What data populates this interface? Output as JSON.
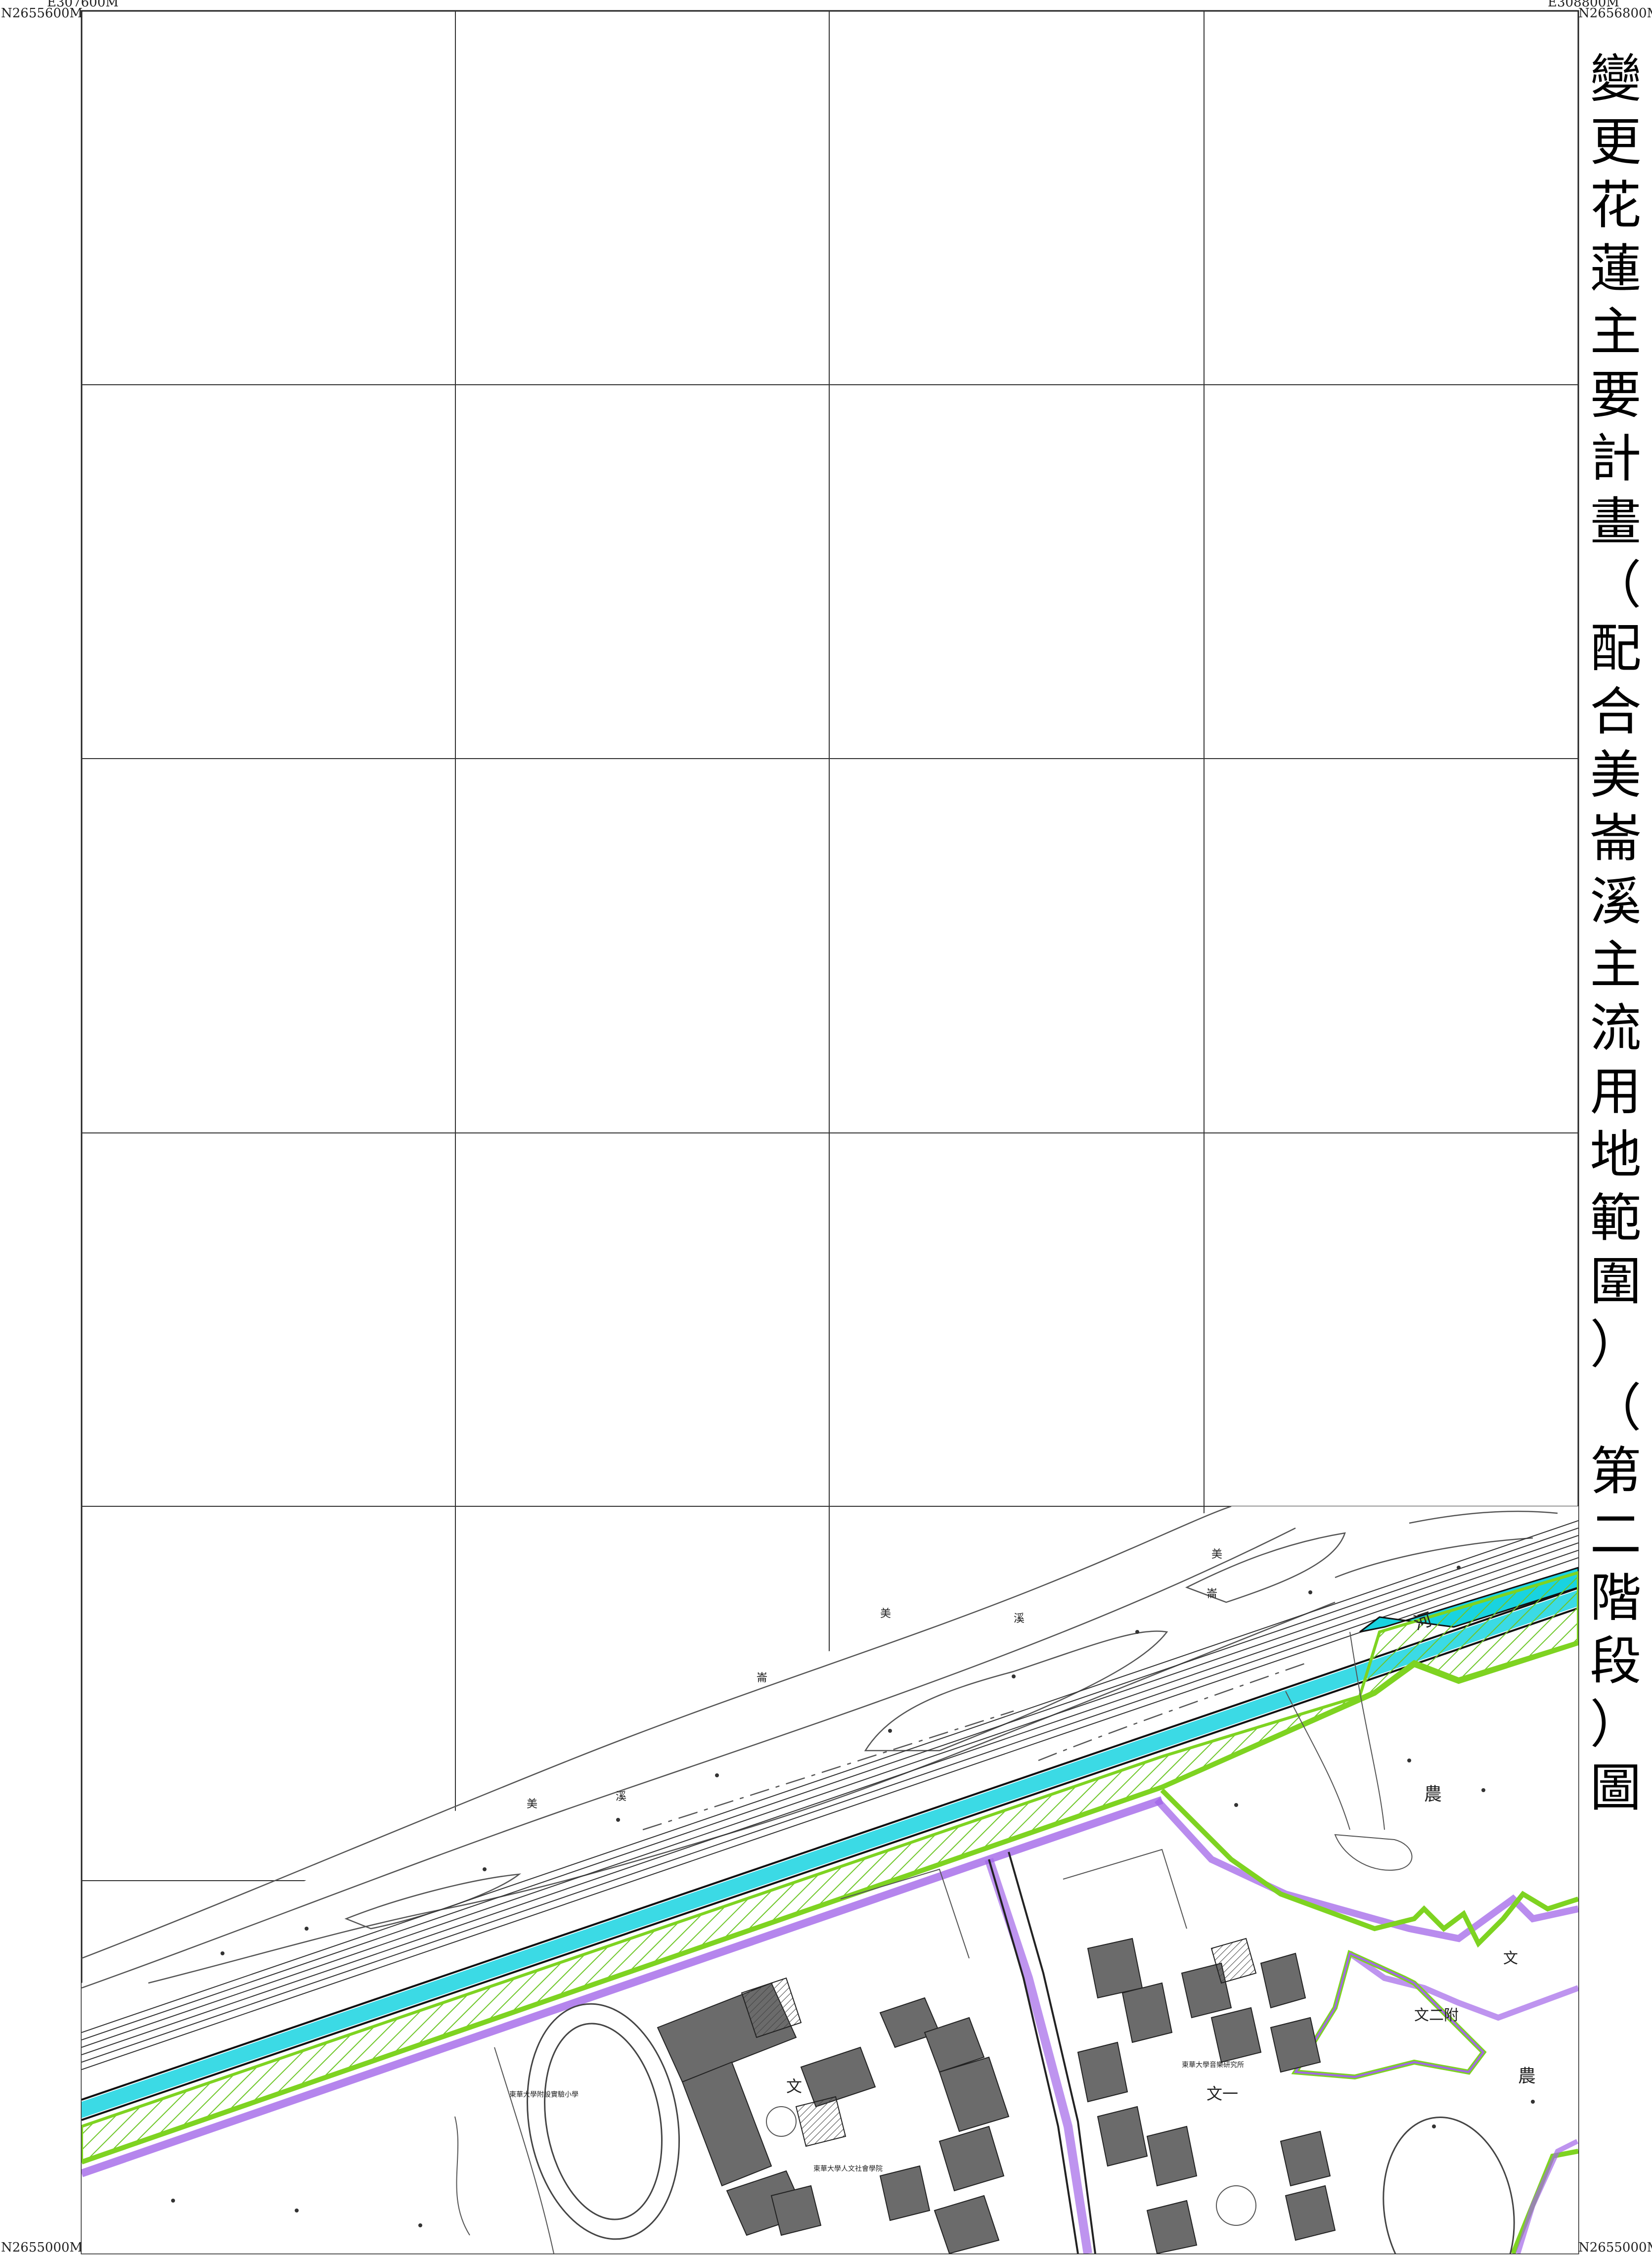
{
  "map": {
    "title": "變更花蓮主要計畫（配合美崙溪主流用地範圍）（第二階段）圖",
    "coords": {
      "top_left_e": "E307600M",
      "top_right_e": "E308800M",
      "top_left_n": "N2655600M",
      "top_right_n": "N2656800M",
      "bottom_left_n": "N2655000M",
      "bottom_right_n": "N2655000M"
    },
    "labels": {
      "river_1": "美",
      "river_2": "溪",
      "river_3": "崙",
      "river_4": "美",
      "river_5": "溪",
      "river_6": "崙",
      "river_7": "美",
      "zone_river": "河",
      "zone_farm_1": "農",
      "zone_farm_2": "農",
      "zone_edu_1": "文",
      "zone_edu_2": "文一",
      "zone_edu_3": "文二附",
      "zone_edu_4": "文",
      "school_1": "東華大學附設實驗小學",
      "school_2": "東華大學人文社會學院",
      "school_3": "東華大學音樂研究所"
    },
    "colors": {
      "residential_green": "#7ed321",
      "river_cyan": "#19d3e0",
      "boundary_purple": "#a266e8",
      "hatch_green": "#6fc72a",
      "building_gray": "#6b6b6b"
    }
  }
}
